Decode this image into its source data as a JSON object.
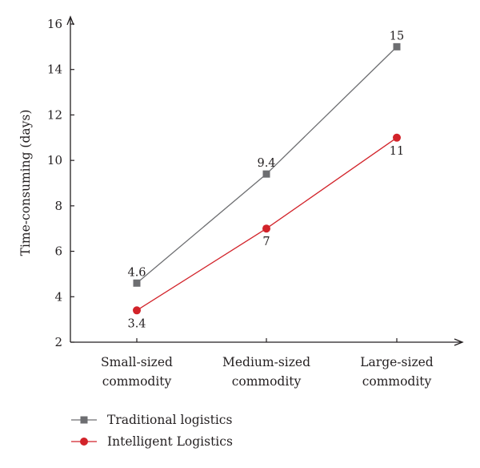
{
  "chart_data": {
    "type": "line",
    "categories": [
      "Small-sized\ncommodity",
      "Medium-sized\ncommodity",
      "Large-sized\ncommodity"
    ],
    "ylabel": "Time-consuming (days)",
    "ylim": [
      2,
      16
    ],
    "yticks": [
      2,
      4,
      6,
      8,
      10,
      12,
      14,
      16
    ],
    "legend_position": "bottom-left",
    "series": [
      {
        "name": "Traditional logistics",
        "values": [
          4.6,
          9.4,
          15
        ],
        "labels": [
          "4.6",
          "9.4",
          "15"
        ],
        "color": "#6d6e71",
        "marker": "square",
        "label_position": "above"
      },
      {
        "name": "Intelligent Logistics",
        "values": [
          3.4,
          7,
          11
        ],
        "labels": [
          "3.4",
          "7",
          "11"
        ],
        "color": "#d2232a",
        "marker": "circle",
        "label_position": "below"
      }
    ]
  }
}
